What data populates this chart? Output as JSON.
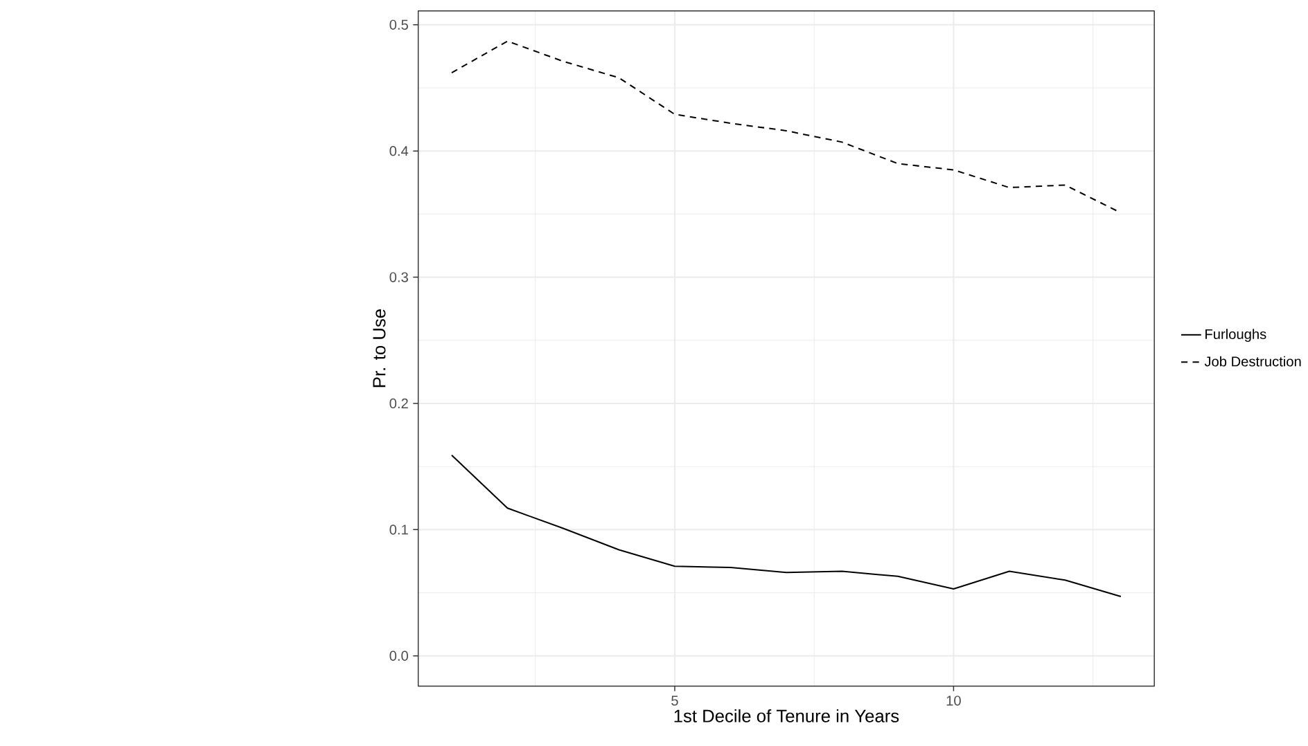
{
  "chart_data": {
    "type": "line",
    "xlabel": "1st Decile of Tenure in Years",
    "ylabel": "Pr. to Use",
    "x": [
      1,
      2,
      3,
      4,
      5,
      6,
      7,
      8,
      9,
      10,
      11,
      12,
      13
    ],
    "series": [
      {
        "name": "Furloughs",
        "color": "#000000",
        "line_style": "solid",
        "values": [
          0.159,
          0.117,
          0.101,
          0.084,
          0.071,
          0.07,
          0.066,
          0.067,
          0.063,
          0.053,
          0.067,
          0.06,
          0.047
        ]
      },
      {
        "name": "Job Destruction",
        "color": "#000000",
        "line_style": "dashed",
        "values": [
          0.462,
          0.487,
          0.471,
          0.458,
          0.429,
          0.422,
          0.416,
          0.407,
          0.39,
          0.385,
          0.371,
          0.373,
          0.351
        ]
      }
    ],
    "xlim": [
      0.4,
      13.6
    ],
    "ylim": [
      -0.024,
      0.511
    ],
    "xticks": [
      5,
      10
    ],
    "yticks": [
      {
        "value": 0,
        "label": "0.0"
      },
      {
        "value": 0.1,
        "label": "0.1"
      },
      {
        "value": 0.2,
        "label": "0.2"
      },
      {
        "value": 0.3,
        "label": "0.3"
      },
      {
        "value": 0.4,
        "label": "0.4"
      },
      {
        "value": 0.5,
        "label": "0.5"
      }
    ],
    "grid": true,
    "legend": "right",
    "marker": "none"
  }
}
